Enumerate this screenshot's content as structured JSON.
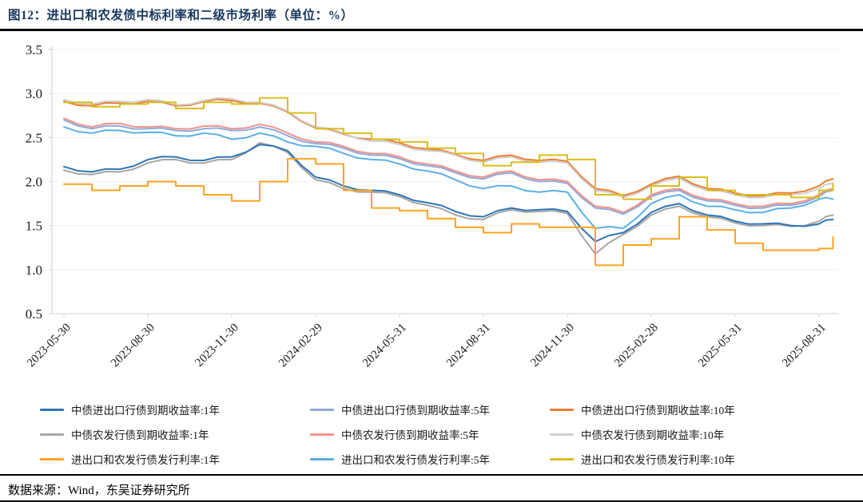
{
  "header": {
    "title": "图12：进出口和农发债中标利率和二级市场利率（单位：%）"
  },
  "footer": {
    "source": "数据来源：Wind，东吴证券研究所"
  },
  "chart_data": {
    "type": "line",
    "title": "进出口和农发债中标利率和二级市场利率",
    "unit": "%",
    "ylim": [
      0.5,
      3.5
    ],
    "y_ticks": [
      3.5,
      3.0,
      2.5,
      2.0,
      1.5,
      1.0,
      0.5
    ],
    "y_tick_labels": [
      "3.5",
      "3.0",
      "2.5",
      "2.0",
      "1.5",
      "1.0",
      "0.5"
    ],
    "grid": "faint-horizontal",
    "legend_position": "bottom",
    "x": [
      "2023-05-30",
      "2023-06-30",
      "2023-07-30",
      "2023-08-30",
      "2023-09-30",
      "2023-10-30",
      "2023-11-30",
      "2023-12-30",
      "2024-01-30",
      "2024-02-29",
      "2024-03-31",
      "2024-04-30",
      "2024-05-31",
      "2024-06-30",
      "2024-07-31",
      "2024-08-31",
      "2024-09-30",
      "2024-10-31",
      "2024-11-30",
      "2024-12-31",
      "2025-01-31",
      "2025-02-28",
      "2025-03-31",
      "2025-04-30",
      "2025-05-31",
      "2025-06-30",
      "2025-07-31",
      "2025-08-31",
      "2025-09-15"
    ],
    "x_tick_labels": [
      "2023-05-30",
      "2023-08-30",
      "2023-11-30",
      "2024-02-29",
      "2024-05-31",
      "2024-08-31",
      "2024-11-30",
      "2025-02-28",
      "2025-05-31",
      "2025-08-31"
    ],
    "series": [
      {
        "name": "中债进出口行债到期收益率:1年",
        "color": "#2e75b6",
        "style": "line",
        "values": [
          2.17,
          2.11,
          2.14,
          2.25,
          2.28,
          2.24,
          2.28,
          2.42,
          2.35,
          2.05,
          1.95,
          1.9,
          1.85,
          1.76,
          1.66,
          1.6,
          1.7,
          1.68,
          1.66,
          1.32,
          1.42,
          1.65,
          1.75,
          1.62,
          1.55,
          1.52,
          1.5,
          1.52,
          1.57
        ]
      },
      {
        "name": "中债进出口行债到期收益率:5年",
        "color": "#8faadc",
        "style": "line",
        "values": [
          2.7,
          2.6,
          2.63,
          2.6,
          2.58,
          2.6,
          2.58,
          2.62,
          2.52,
          2.43,
          2.38,
          2.3,
          2.26,
          2.18,
          2.1,
          2.03,
          2.1,
          2.0,
          1.98,
          1.7,
          1.63,
          1.83,
          1.9,
          1.78,
          1.73,
          1.7,
          1.73,
          1.83,
          1.9
        ]
      },
      {
        "name": "中债进出口行债到期收益率:10年",
        "color": "#ed7d31",
        "style": "line",
        "values": [
          2.91,
          2.86,
          2.89,
          2.91,
          2.86,
          2.91,
          2.92,
          2.89,
          2.79,
          2.61,
          2.54,
          2.48,
          2.44,
          2.37,
          2.31,
          2.24,
          2.3,
          2.24,
          2.23,
          1.92,
          1.84,
          1.97,
          2.06,
          1.92,
          1.87,
          1.84,
          1.87,
          1.95,
          2.03
        ]
      },
      {
        "name": "中债农发行债到期收益率:1年",
        "color": "#a6a6a6",
        "style": "line",
        "values": [
          2.13,
          2.08,
          2.11,
          2.21,
          2.25,
          2.21,
          2.25,
          2.44,
          2.33,
          2.02,
          1.92,
          1.88,
          1.83,
          1.73,
          1.62,
          1.57,
          1.68,
          1.66,
          1.64,
          1.18,
          1.4,
          1.62,
          1.72,
          1.6,
          1.53,
          1.5,
          1.49,
          1.55,
          1.62
        ]
      },
      {
        "name": "中债农发行债到期收益率:5年",
        "color": "#f1948a",
        "style": "line",
        "values": [
          2.72,
          2.62,
          2.66,
          2.62,
          2.6,
          2.63,
          2.6,
          2.65,
          2.55,
          2.45,
          2.4,
          2.32,
          2.28,
          2.2,
          2.12,
          2.05,
          2.12,
          2.02,
          2.0,
          1.72,
          1.65,
          1.85,
          1.92,
          1.8,
          1.75,
          1.72,
          1.75,
          1.85,
          1.92
        ]
      },
      {
        "name": "中债农发行债到期收益率:10年",
        "color": "#cfcdcd",
        "style": "line",
        "values": [
          2.93,
          2.88,
          2.91,
          2.93,
          2.87,
          2.92,
          2.94,
          2.9,
          2.8,
          2.62,
          2.55,
          2.46,
          2.42,
          2.35,
          2.3,
          2.22,
          2.28,
          2.22,
          2.21,
          1.9,
          1.82,
          1.95,
          2.04,
          1.9,
          1.85,
          1.82,
          1.85,
          1.92,
          1.98
        ]
      },
      {
        "name": "进出口和农发行债发行利率:1年",
        "color": "#ffa320",
        "style": "step",
        "values": [
          1.97,
          1.9,
          1.95,
          2.0,
          1.95,
          1.85,
          1.78,
          2.0,
          2.26,
          2.2,
          1.9,
          1.7,
          1.67,
          1.58,
          1.48,
          1.42,
          1.52,
          1.48,
          1.48,
          1.05,
          1.28,
          1.35,
          1.6,
          1.45,
          1.3,
          1.22,
          1.22,
          1.24,
          1.37
        ]
      },
      {
        "name": "进出口和农发行债发行利率:5年",
        "color": "#5bb0e5",
        "style": "line",
        "values": [
          2.62,
          2.55,
          2.58,
          2.56,
          2.52,
          2.55,
          2.48,
          2.55,
          2.45,
          2.4,
          2.32,
          2.25,
          2.2,
          2.12,
          2.02,
          1.92,
          1.95,
          1.88,
          1.88,
          1.47,
          1.47,
          1.75,
          1.85,
          1.72,
          1.68,
          1.65,
          1.7,
          1.8,
          1.8
        ]
      },
      {
        "name": "进出口和农发行债发行利率:10年",
        "color": "#d9be1c",
        "style": "step",
        "values": [
          2.9,
          2.85,
          2.88,
          2.9,
          2.83,
          2.9,
          2.88,
          2.95,
          2.78,
          2.6,
          2.55,
          2.48,
          2.45,
          2.38,
          2.32,
          2.18,
          2.22,
          2.3,
          2.25,
          1.85,
          1.8,
          1.95,
          2.05,
          1.9,
          1.85,
          1.85,
          1.82,
          1.9,
          1.97
        ]
      }
    ],
    "colors": {
      "title": "#17375d",
      "axis": "#d9d9d9",
      "gridline": "#f2f1ec",
      "tick_text": "#1a1a1a"
    }
  }
}
